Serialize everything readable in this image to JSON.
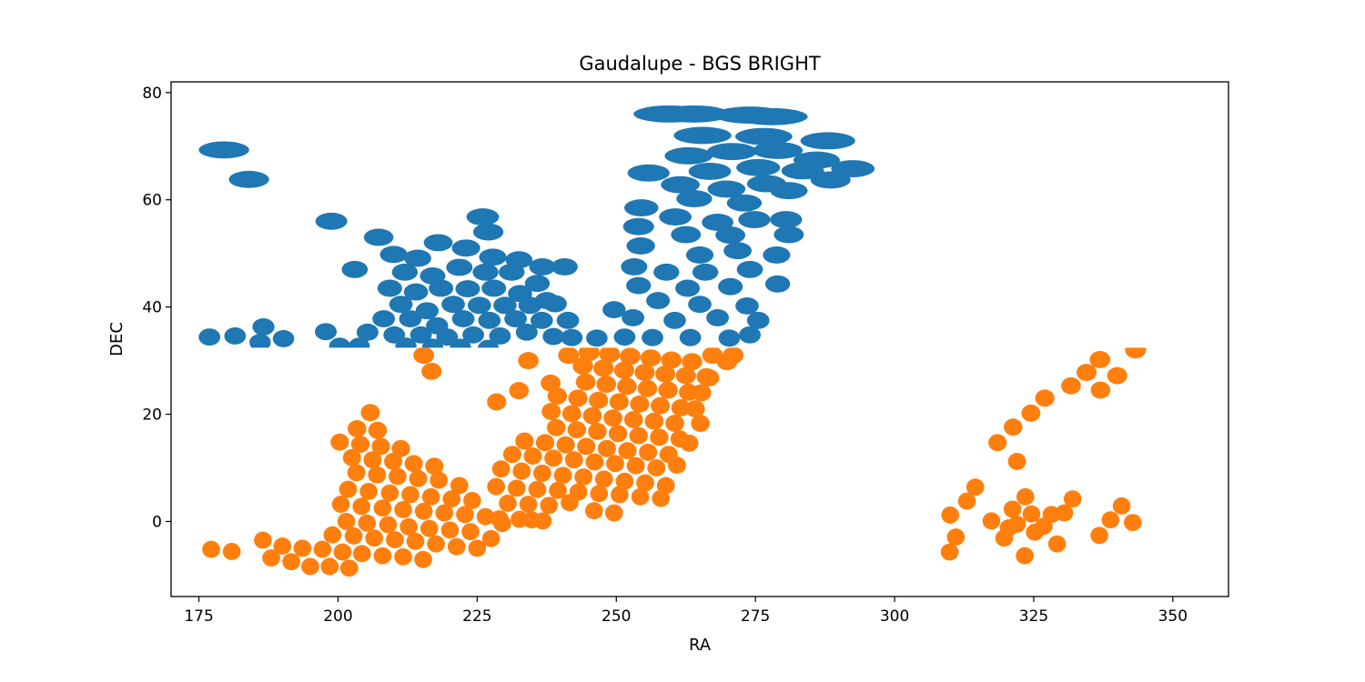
{
  "chart_data": {
    "type": "scatter",
    "title": "Gaudalupe - BGS BRIGHT",
    "xlabel": "RA",
    "ylabel": "DEC",
    "xlim": [
      170,
      360
    ],
    "ylim": [
      -14,
      82
    ],
    "xticks": [
      175,
      200,
      225,
      250,
      275,
      300,
      325,
      350
    ],
    "yticks": [
      0,
      20,
      40,
      60,
      80
    ],
    "grid": false,
    "legend": "none",
    "tile_radius_deg": 1.6,
    "series": [
      {
        "color": "#1f77b4",
        "tiles": [
          [
            179.5,
            69.3
          ],
          [
            184,
            63.8
          ],
          [
            198.8,
            56
          ],
          [
            203,
            47
          ],
          [
            207.3,
            53
          ],
          [
            176.9,
            34.4
          ],
          [
            181.5,
            34.6
          ],
          [
            186.6,
            36.3
          ],
          [
            190.2,
            34.1
          ],
          [
            197.8,
            35.4
          ],
          [
            200.3,
            32.7
          ],
          [
            203.8,
            32.7
          ],
          [
            186,
            33.4
          ],
          [
            259.5,
            76
          ],
          [
            264,
            76
          ],
          [
            274,
            75.8
          ],
          [
            278,
            75.5
          ],
          [
            265.5,
            72
          ],
          [
            276.5,
            71.8
          ],
          [
            288,
            71
          ],
          [
            286,
            67.4
          ],
          [
            279,
            69.2
          ],
          [
            270.8,
            69
          ],
          [
            263,
            68.2
          ],
          [
            292.5,
            65.8
          ],
          [
            288.5,
            63.7
          ],
          [
            281,
            61.7
          ],
          [
            283.5,
            65.4
          ],
          [
            275.5,
            66
          ],
          [
            266.8,
            65.3
          ],
          [
            255.8,
            65
          ],
          [
            261.5,
            62.8
          ],
          [
            269.8,
            62
          ],
          [
            277,
            63
          ],
          [
            273,
            59.4
          ],
          [
            264,
            60.2
          ],
          [
            254.5,
            58.5
          ],
          [
            274.8,
            56.3
          ],
          [
            280.5,
            56.3
          ],
          [
            268.2,
            55.8
          ],
          [
            260.6,
            56.8
          ],
          [
            254,
            55
          ],
          [
            281,
            53.5
          ],
          [
            270.5,
            53.4
          ],
          [
            262.5,
            53.5
          ],
          [
            254.4,
            51.4
          ],
          [
            278.8,
            49.7
          ],
          [
            271.8,
            50.5
          ],
          [
            265,
            49.7
          ],
          [
            274,
            47
          ],
          [
            266,
            46.5
          ],
          [
            259,
            46.5
          ],
          [
            253.2,
            47.5
          ],
          [
            270.5,
            43.8
          ],
          [
            262.8,
            43.5
          ],
          [
            254,
            44
          ],
          [
            279,
            44.3
          ],
          [
            257.5,
            41.2
          ],
          [
            265,
            40.5
          ],
          [
            273.5,
            40.2
          ],
          [
            249.6,
            39.5
          ],
          [
            253,
            38
          ],
          [
            260.5,
            37.5
          ],
          [
            268.2,
            38
          ],
          [
            275.5,
            37.5
          ],
          [
            251.5,
            34.4
          ],
          [
            256.5,
            34.3
          ],
          [
            263.3,
            34.3
          ],
          [
            270.3,
            34.2
          ],
          [
            274,
            34.8
          ],
          [
            246.5,
            34.2
          ],
          [
            242,
            34.3
          ],
          [
            210,
            49.8
          ],
          [
            214.3,
            49.1
          ],
          [
            218,
            52
          ],
          [
            223,
            51
          ],
          [
            227.8,
            49.3
          ],
          [
            232.5,
            48.8
          ],
          [
            236.7,
            47.5
          ],
          [
            212,
            46.5
          ],
          [
            217,
            45.8
          ],
          [
            221.8,
            47.4
          ],
          [
            226.5,
            46.5
          ],
          [
            231.2,
            46.5
          ],
          [
            235.8,
            44.4
          ],
          [
            240.7,
            47.5
          ],
          [
            209.3,
            43.5
          ],
          [
            214,
            42.8
          ],
          [
            218.5,
            43.5
          ],
          [
            223.3,
            43.4
          ],
          [
            228,
            43.5
          ],
          [
            232.7,
            42.5
          ],
          [
            237.5,
            41.2
          ],
          [
            211.3,
            40.5
          ],
          [
            216,
            39.3
          ],
          [
            220.7,
            40.5
          ],
          [
            225.4,
            40.3
          ],
          [
            230,
            40.3
          ],
          [
            234.5,
            40.3
          ],
          [
            239,
            40.6
          ],
          [
            208.2,
            37.8
          ],
          [
            213,
            37.8
          ],
          [
            217.8,
            36.5
          ],
          [
            222.5,
            37.8
          ],
          [
            227.2,
            37.5
          ],
          [
            231.9,
            37.8
          ],
          [
            236.6,
            37.5
          ],
          [
            241.3,
            37.5
          ],
          [
            205.3,
            35.3
          ],
          [
            210.1,
            34.8
          ],
          [
            214.9,
            34.8
          ],
          [
            219.6,
            34.4
          ],
          [
            224.3,
            34.8
          ],
          [
            229.1,
            34.6
          ],
          [
            233.9,
            35.3
          ],
          [
            238.7,
            34.5
          ],
          [
            212.2,
            32.7
          ],
          [
            217,
            32.5
          ],
          [
            222,
            32.5
          ],
          [
            227,
            32.3
          ],
          [
            227,
            54
          ],
          [
            226,
            56.8
          ]
        ]
      },
      {
        "color": "#ff7f0e",
        "tiles": [
          [
            177.2,
            -5.2
          ],
          [
            180.9,
            -5.6
          ],
          [
            186.5,
            -3.5
          ],
          [
            188,
            -6.8
          ],
          [
            191.6,
            -7.5
          ],
          [
            195,
            -8.4
          ],
          [
            198.5,
            -8.4
          ],
          [
            202,
            -8.7
          ],
          [
            190,
            -4.6
          ],
          [
            193.6,
            -5
          ],
          [
            197.2,
            -5.2
          ],
          [
            200.8,
            -5.7
          ],
          [
            204.3,
            -6
          ],
          [
            208,
            -6.4
          ],
          [
            211.7,
            -6.6
          ],
          [
            215.3,
            -7.1
          ],
          [
            199,
            -2.5
          ],
          [
            202.8,
            -2.7
          ],
          [
            206.5,
            -3.1
          ],
          [
            210.2,
            -3.4
          ],
          [
            213.9,
            -3.7
          ],
          [
            217.6,
            -4.2
          ],
          [
            221.3,
            -4.7
          ],
          [
            225,
            -5
          ],
          [
            200.5,
            3.2
          ],
          [
            204.2,
            2.8
          ],
          [
            208,
            2.5
          ],
          [
            211.7,
            2.2
          ],
          [
            215.4,
            1.9
          ],
          [
            219.1,
            1.6
          ],
          [
            222.8,
            1.3
          ],
          [
            226.5,
            0.9
          ],
          [
            201.5,
            0
          ],
          [
            205.2,
            -0.3
          ],
          [
            209,
            -0.6
          ],
          [
            212.7,
            -1
          ],
          [
            216.4,
            -1.3
          ],
          [
            220.1,
            -1.6
          ],
          [
            223.8,
            -1.9
          ],
          [
            227.5,
            -3.2
          ],
          [
            201.8,
            6
          ],
          [
            205.5,
            5.6
          ],
          [
            209.3,
            5.3
          ],
          [
            213,
            5
          ],
          [
            216.7,
            4.6
          ],
          [
            220.4,
            4.2
          ],
          [
            224.1,
            3.9
          ],
          [
            203.3,
            9.1
          ],
          [
            207,
            8.7
          ],
          [
            210.7,
            8.4
          ],
          [
            214.4,
            8
          ],
          [
            218.1,
            7.7
          ],
          [
            221.8,
            6.7
          ],
          [
            202.5,
            11.9
          ],
          [
            206.2,
            11.5
          ],
          [
            209.9,
            11.2
          ],
          [
            213.6,
            10.8
          ],
          [
            217.3,
            10.3
          ],
          [
            200.3,
            14.8
          ],
          [
            204,
            14.4
          ],
          [
            207.7,
            14
          ],
          [
            211.3,
            13.6
          ],
          [
            203.4,
            17.3
          ],
          [
            207.1,
            17
          ],
          [
            205.8,
            20.3
          ],
          [
            229,
            0.5
          ],
          [
            232.6,
            0.4
          ],
          [
            234.8,
            0.3
          ],
          [
            236.8,
            0.1
          ],
          [
            230.5,
            3.4
          ],
          [
            234.2,
            3.2
          ],
          [
            237.9,
            3
          ],
          [
            241.6,
            3.5
          ],
          [
            228.4,
            6.5
          ],
          [
            232.1,
            6.2
          ],
          [
            235.8,
            6
          ],
          [
            239.5,
            5.8
          ],
          [
            243.2,
            5.5
          ],
          [
            246.9,
            5.2
          ],
          [
            250.6,
            5
          ],
          [
            254.3,
            4.6
          ],
          [
            258,
            4.3
          ],
          [
            246,
            2
          ],
          [
            249.6,
            1.6
          ],
          [
            229.3,
            9.8
          ],
          [
            233,
            9.4
          ],
          [
            236.7,
            9
          ],
          [
            240.4,
            8.6
          ],
          [
            244.1,
            8.3
          ],
          [
            247.8,
            7.9
          ],
          [
            251.5,
            7.5
          ],
          [
            255.2,
            7.2
          ],
          [
            258.9,
            6.7
          ],
          [
            231.3,
            12.5
          ],
          [
            235,
            12.2
          ],
          [
            238.7,
            11.8
          ],
          [
            242.4,
            11.5
          ],
          [
            246.1,
            11.1
          ],
          [
            249.8,
            10.8
          ],
          [
            253.5,
            10.4
          ],
          [
            257.2,
            10
          ],
          [
            260.9,
            10.5
          ],
          [
            233.5,
            15
          ],
          [
            237.2,
            14.7
          ],
          [
            240.9,
            14.3
          ],
          [
            244.6,
            14
          ],
          [
            248.3,
            13.6
          ],
          [
            252,
            13.2
          ],
          [
            255.7,
            12.9
          ],
          [
            259.4,
            12.5
          ],
          [
            263.1,
            14.6
          ],
          [
            239.2,
            17.5
          ],
          [
            242.9,
            17.1
          ],
          [
            246.6,
            16.8
          ],
          [
            250.3,
            16.4
          ],
          [
            254,
            16
          ],
          [
            257.7,
            15.7
          ],
          [
            261.4,
            15.4
          ],
          [
            265.1,
            18.3
          ],
          [
            238.3,
            20.5
          ],
          [
            242,
            20.1
          ],
          [
            245.7,
            19.7
          ],
          [
            249.4,
            19.3
          ],
          [
            253.1,
            19
          ],
          [
            256.8,
            18.7
          ],
          [
            260.5,
            18.3
          ],
          [
            264.2,
            21
          ],
          [
            239.4,
            23.4
          ],
          [
            243.1,
            23
          ],
          [
            246.8,
            22.6
          ],
          [
            250.5,
            22.3
          ],
          [
            254.2,
            21.9
          ],
          [
            257.9,
            21.6
          ],
          [
            261.6,
            21.2
          ],
          [
            265.3,
            24
          ],
          [
            238.2,
            25.8
          ],
          [
            244.5,
            26
          ],
          [
            248.2,
            25.6
          ],
          [
            251.9,
            25.2
          ],
          [
            255.6,
            24.8
          ],
          [
            259.3,
            24.5
          ],
          [
            263,
            24.1
          ],
          [
            266.7,
            26.8
          ],
          [
            244,
            29
          ],
          [
            247.7,
            28.6
          ],
          [
            251.4,
            28.2
          ],
          [
            255.1,
            27.8
          ],
          [
            258.8,
            27.5
          ],
          [
            262.5,
            27.2
          ],
          [
            266.2,
            27
          ],
          [
            269.9,
            29.8
          ],
          [
            241.4,
            31
          ],
          [
            245.1,
            31.5
          ],
          [
            248.8,
            31.2
          ],
          [
            252.5,
            30.8
          ],
          [
            256.2,
            30.5
          ],
          [
            259.9,
            30.1
          ],
          [
            263.6,
            29.8
          ],
          [
            267.3,
            31
          ],
          [
            271,
            31
          ],
          [
            228.5,
            22.3
          ],
          [
            232.5,
            24.4
          ],
          [
            234.2,
            30
          ],
          [
            216.8,
            28
          ],
          [
            215.4,
            31
          ],
          [
            229.5,
            -0.4
          ],
          [
            310,
            1.2
          ],
          [
            311,
            -2.9
          ],
          [
            309.9,
            -5.7
          ],
          [
            313,
            3.8
          ],
          [
            314.5,
            6.4
          ],
          [
            318.5,
            14.7
          ],
          [
            321.3,
            17.6
          ],
          [
            324.5,
            20.2
          ],
          [
            327,
            23
          ],
          [
            322,
            11.2
          ],
          [
            331.7,
            25.3
          ],
          [
            334.5,
            27.8
          ],
          [
            336.9,
            30.2
          ],
          [
            340,
            27.2
          ],
          [
            337,
            24.5
          ],
          [
            343.3,
            32
          ],
          [
            342.8,
            -0.2
          ],
          [
            340.8,
            2.9
          ],
          [
            338.8,
            0.3
          ],
          [
            336.8,
            -2.6
          ],
          [
            317.4,
            0.1
          ],
          [
            319.7,
            -3.1
          ],
          [
            321.2,
            2.3
          ],
          [
            322,
            -0.5
          ],
          [
            323.5,
            4.6
          ],
          [
            324.6,
            1.4
          ],
          [
            325.2,
            -2
          ],
          [
            326.8,
            -0.9
          ],
          [
            328.2,
            1.3
          ],
          [
            329.2,
            -4.2
          ],
          [
            330.5,
            1.6
          ],
          [
            332,
            4.2
          ],
          [
            323.4,
            -6.4
          ],
          [
            320.5,
            -1.2
          ]
        ]
      }
    ]
  }
}
